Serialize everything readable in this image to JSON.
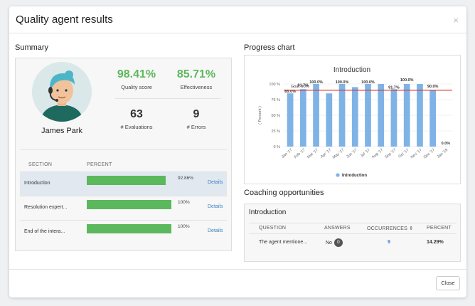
{
  "modal": {
    "title": "Quality agent results",
    "close_icon": "×",
    "close_button": "Close"
  },
  "summary": {
    "title": "Summary",
    "agent_name": "James Park",
    "quality_score": "98.41%",
    "quality_score_label": "Quality score",
    "effectiveness": "85.71%",
    "effectiveness_label": "Effectiveness",
    "evaluations": "63",
    "evaluations_label": "# Evaluations",
    "errors": "9",
    "errors_label": "# Errors",
    "table": {
      "headers": [
        "SECTION",
        "PERCENT"
      ],
      "rows": [
        {
          "section": "Introduction",
          "percent": 92.86,
          "percent_label": "92.86%",
          "details": "Details"
        },
        {
          "section": "Resolution expert...",
          "percent": 100,
          "percent_label": "100%",
          "details": "Details"
        },
        {
          "section": "End of the intera...",
          "percent": 100,
          "percent_label": "100%",
          "details": "Details"
        }
      ]
    }
  },
  "progress": {
    "title": "Progress chart",
    "goal_color": "#d9302c",
    "bar_color": "#7fb3e6"
  },
  "chart_data": {
    "type": "bar",
    "title": "Introduction",
    "ylabel": "( Percent )",
    "ylim": [
      0,
      100
    ],
    "yticks": [
      "0 %",
      "25 %",
      "50 %",
      "75 %",
      "100 %"
    ],
    "goal_label": "Goal: 90%",
    "goal": 90,
    "categories": [
      "Jan '17",
      "Feb '17",
      "Mar '17",
      "Apr '17",
      "May '17",
      "Jun '17",
      "Jul '17",
      "Aug '17",
      "Sep '17",
      "Oct '17",
      "Nov '17",
      "Dec '17",
      "Jan '18"
    ],
    "series": [
      {
        "name": "Introduction",
        "values": [
          85,
          91.7,
          100,
          85,
          100,
          95,
          100,
          100,
          91.7,
          100,
          100,
          90,
          0
        ],
        "labels": [
          "85.0%",
          "91.7%",
          "100.0%",
          "",
          "100.0%",
          "",
          "100.0%",
          "",
          "91.7%",
          "100.0%",
          "",
          "90.0%",
          "0.0%"
        ]
      }
    ],
    "legend_position": "bottom"
  },
  "coaching": {
    "title": "Coaching opportunities",
    "section": "Introduction",
    "headers": {
      "question": "QUESTION",
      "answers": "ANSWERS",
      "occurrences": "OCCURRENCES",
      "sort_icon": "⇕",
      "percent": "PERCENT"
    },
    "row": {
      "question": "The agent mentione...",
      "answer": "No",
      "answer_badge": "0",
      "occurrences": "9",
      "percent": "14.29%"
    }
  }
}
